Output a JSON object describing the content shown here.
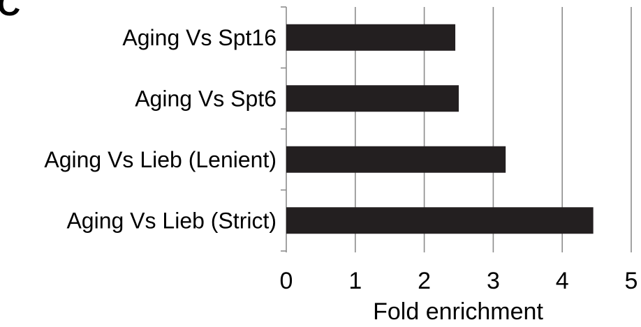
{
  "chart_data": {
    "type": "bar",
    "orientation": "horizontal",
    "categories": [
      "Aging Vs Spt16",
      "Aging Vs Spt6",
      "Aging Vs Lieb (Lenient)",
      "Aging Vs Lieb (Strict)"
    ],
    "values": [
      2.45,
      2.5,
      3.18,
      4.45
    ],
    "xlabel": "Fold enrichment",
    "ylabel": "",
    "xlim": [
      0,
      5
    ],
    "xticks": [
      "0",
      "1",
      "2",
      "3",
      "4",
      "5"
    ],
    "grid": true,
    "bar_color": "#231f20"
  },
  "panel_letter": "C"
}
